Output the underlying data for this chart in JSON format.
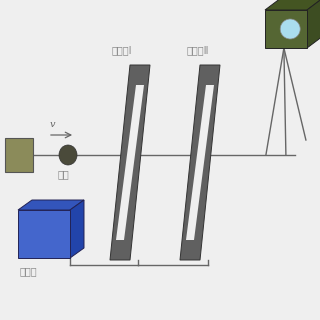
{
  "bg_color": "#efefef",
  "line_color": "#666666",
  "gun_color": "#8b8b5a",
  "fragment_color": "#4a4a3a",
  "screen_color": "#606060",
  "timer_face_color": "#4466cc",
  "timer_side_color": "#2244aa",
  "timer_top_color": "#3355bb",
  "camera_front_color": "#556633",
  "camera_side_color": "#3d4d22",
  "camera_top_color": "#445522",
  "camera_lens_color": "#aaddee",
  "label_screen1": "测速靶Ⅰ",
  "label_screen2": "测速靶Ⅱ",
  "label_fragment": "破片",
  "label_timer": "计时器",
  "label_velocity": "v",
  "text_color": "#888888"
}
